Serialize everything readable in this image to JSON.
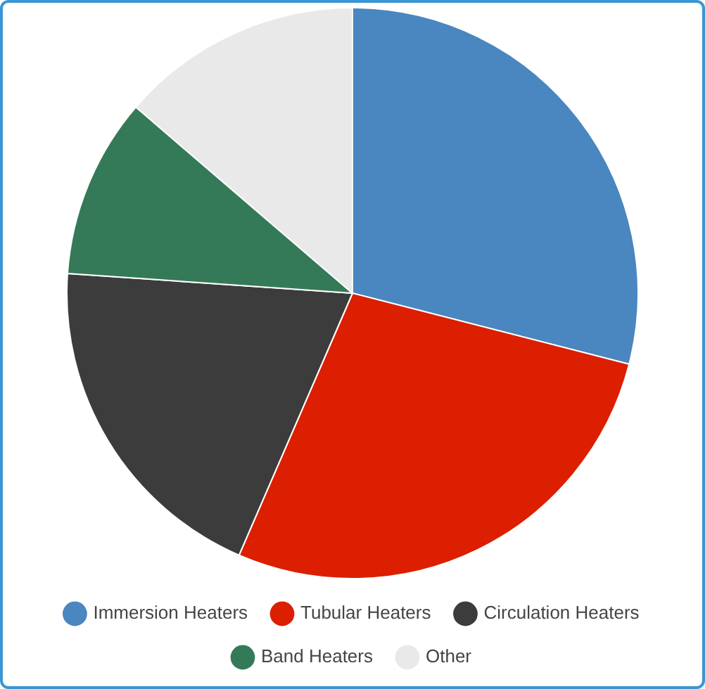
{
  "chart_data": {
    "type": "pie",
    "categories": [
      "Immersion Heaters",
      "Tubular Heaters",
      "Circulation Heaters",
      "Band Heaters",
      "Other"
    ],
    "values": [
      29,
      27.5,
      19.6,
      10.2,
      13.7
    ],
    "colors": [
      "#4a86bf",
      "#db1f00",
      "#3c3c3c",
      "#357a58",
      "#e9e9e9"
    ],
    "legend": "bottom"
  }
}
